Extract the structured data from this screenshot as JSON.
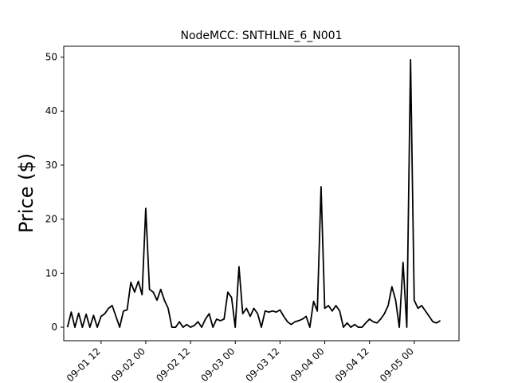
{
  "chart_data": {
    "type": "line",
    "title": "NodeMCC: SNTHLNE_6_N001",
    "xlabel": "",
    "ylabel": "Price ($)",
    "xlim": [
      "2023-09-01 02:00",
      "2023-09-05 12:00"
    ],
    "ylim": [
      -2.5,
      52
    ],
    "x_ticks": [
      "2023-09-01 12:00",
      "2023-09-02 00:00",
      "2023-09-02 12:00",
      "2023-09-03 00:00",
      "2023-09-03 12:00",
      "2023-09-04 00:00",
      "2023-09-04 12:00",
      "2023-09-05 00:00"
    ],
    "x_tick_labels": [
      "09-01 12",
      "09-02 00",
      "09-02 12",
      "09-03 00",
      "09-03 12",
      "09-04 00",
      "09-04 12",
      "09-05 00"
    ],
    "y_ticks": [
      0,
      10,
      20,
      30,
      40,
      50
    ],
    "grid": false,
    "line_color": "#000000",
    "series": [
      {
        "x": [
          "2023-09-01 03:00",
          "2023-09-01 04:00",
          "2023-09-01 05:00",
          "2023-09-01 06:00",
          "2023-09-01 07:00",
          "2023-09-01 08:00",
          "2023-09-01 09:00",
          "2023-09-01 10:00",
          "2023-09-01 11:00",
          "2023-09-01 12:00",
          "2023-09-01 13:00",
          "2023-09-01 14:00",
          "2023-09-01 15:00",
          "2023-09-01 16:00",
          "2023-09-01 17:00",
          "2023-09-01 18:00",
          "2023-09-01 19:00",
          "2023-09-01 20:00",
          "2023-09-01 21:00",
          "2023-09-01 22:00",
          "2023-09-01 23:00",
          "2023-09-02 00:00",
          "2023-09-02 01:00",
          "2023-09-02 02:00",
          "2023-09-02 03:00",
          "2023-09-02 04:00",
          "2023-09-02 05:00",
          "2023-09-02 06:00",
          "2023-09-02 07:00",
          "2023-09-02 08:00",
          "2023-09-02 09:00",
          "2023-09-02 10:00",
          "2023-09-02 11:00",
          "2023-09-02 12:00",
          "2023-09-02 13:00",
          "2023-09-02 14:00",
          "2023-09-02 15:00",
          "2023-09-02 16:00",
          "2023-09-02 17:00",
          "2023-09-02 18:00",
          "2023-09-02 19:00",
          "2023-09-02 20:00",
          "2023-09-02 21:00",
          "2023-09-02 22:00",
          "2023-09-02 23:00",
          "2023-09-03 00:00",
          "2023-09-03 01:00",
          "2023-09-03 02:00",
          "2023-09-03 03:00",
          "2023-09-03 04:00",
          "2023-09-03 05:00",
          "2023-09-03 06:00",
          "2023-09-03 07:00",
          "2023-09-03 08:00",
          "2023-09-03 09:00",
          "2023-09-03 10:00",
          "2023-09-03 11:00",
          "2023-09-03 12:00",
          "2023-09-03 13:00",
          "2023-09-03 14:00",
          "2023-09-03 15:00",
          "2023-09-03 16:00",
          "2023-09-03 17:00",
          "2023-09-03 18:00",
          "2023-09-03 19:00",
          "2023-09-03 20:00",
          "2023-09-03 21:00",
          "2023-09-03 22:00",
          "2023-09-03 23:00",
          "2023-09-04 00:00",
          "2023-09-04 01:00",
          "2023-09-04 02:00",
          "2023-09-04 03:00",
          "2023-09-04 04:00",
          "2023-09-04 05:00",
          "2023-09-04 06:00",
          "2023-09-04 07:00",
          "2023-09-04 08:00",
          "2023-09-04 09:00",
          "2023-09-04 10:00",
          "2023-09-04 11:00",
          "2023-09-04 12:00",
          "2023-09-04 13:00",
          "2023-09-04 14:00",
          "2023-09-04 15:00",
          "2023-09-04 16:00",
          "2023-09-04 17:00",
          "2023-09-04 18:00",
          "2023-09-04 19:00",
          "2023-09-04 20:00",
          "2023-09-04 21:00",
          "2023-09-04 22:00",
          "2023-09-04 23:00",
          "2023-09-05 00:00",
          "2023-09-05 01:00",
          "2023-09-05 02:00",
          "2023-09-05 03:00",
          "2023-09-05 04:00",
          "2023-09-05 05:00",
          "2023-09-05 06:00",
          "2023-09-05 07:00"
        ],
        "values": [
          0,
          2.8,
          0,
          2.6,
          0,
          2.4,
          0,
          2.2,
          0,
          2.0,
          2.5,
          3.5,
          4.0,
          2.0,
          0,
          3.0,
          3.2,
          8.3,
          6.5,
          8.5,
          6.0,
          22.0,
          7.0,
          6.5,
          5.0,
          7.0,
          5.0,
          3.5,
          0,
          0,
          1.0,
          0,
          0.5,
          0,
          0.3,
          1.0,
          0,
          1.5,
          2.5,
          0,
          1.5,
          1.2,
          1.5,
          6.5,
          5.5,
          0,
          11.2,
          2.5,
          3.5,
          2.0,
          3.5,
          2.5,
          0,
          3.0,
          2.8,
          3.0,
          2.8,
          3.2,
          2.0,
          1.0,
          0.5,
          1.0,
          1.2,
          1.5,
          2.0,
          0,
          4.8,
          3.0,
          26.0,
          3.5,
          4.0,
          3.0,
          4.0,
          3.0,
          0,
          0.8,
          0,
          0.5,
          0,
          0,
          0.8,
          1.5,
          1.0,
          0.8,
          1.5,
          2.5,
          4.0,
          7.5,
          5.0,
          0,
          12.0,
          0,
          49.5,
          5.0,
          3.5,
          4.0,
          3.0,
          2.0,
          1.0,
          0.8,
          1.2
        ]
      }
    ]
  }
}
